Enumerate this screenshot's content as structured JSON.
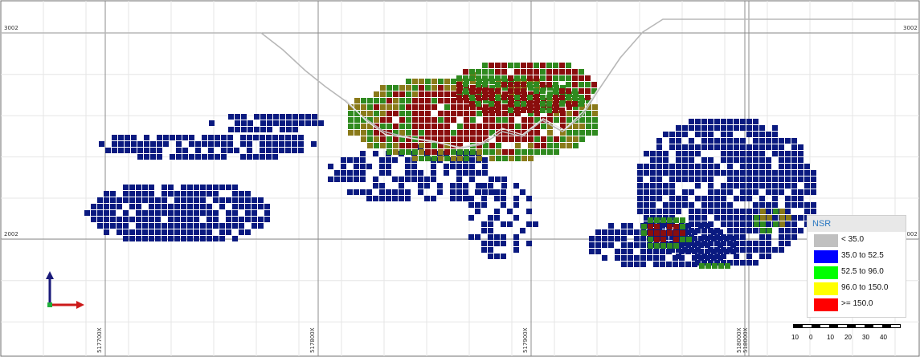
{
  "grid": {
    "elevation_labels": [
      "3002",
      "3002",
      "2002",
      "2002"
    ],
    "easting_labels": [
      "517700X",
      "517800X",
      "517900X",
      "518000X",
      "518000X"
    ]
  },
  "legend": {
    "title": "NSR",
    "items": [
      {
        "label": "< 35.0",
        "color": "#c0c0c0"
      },
      {
        "label": "35.0 to 52.5",
        "color": "#0000ff"
      },
      {
        "label": "52.5 to 96.0",
        "color": "#00ff00"
      },
      {
        "label": "96.0 to 150.0",
        "color": "#ffff00"
      },
      {
        "label": ">= 150.0",
        "color": "#ff0000"
      }
    ]
  },
  "scale_bar": {
    "ticks": [
      "10",
      "0",
      "10",
      "20",
      "30",
      "40"
    ]
  },
  "colors": {
    "low_block": "#0a1a80",
    "mid_block": "#2f8a1f",
    "high_block": "#8a0d0d",
    "olive_block": "#8a7a1a",
    "pit_outline": "#b8b8b8"
  },
  "axes_indicator": {
    "icons": [
      "up-arrow-icon",
      "right-arrow-icon"
    ]
  }
}
